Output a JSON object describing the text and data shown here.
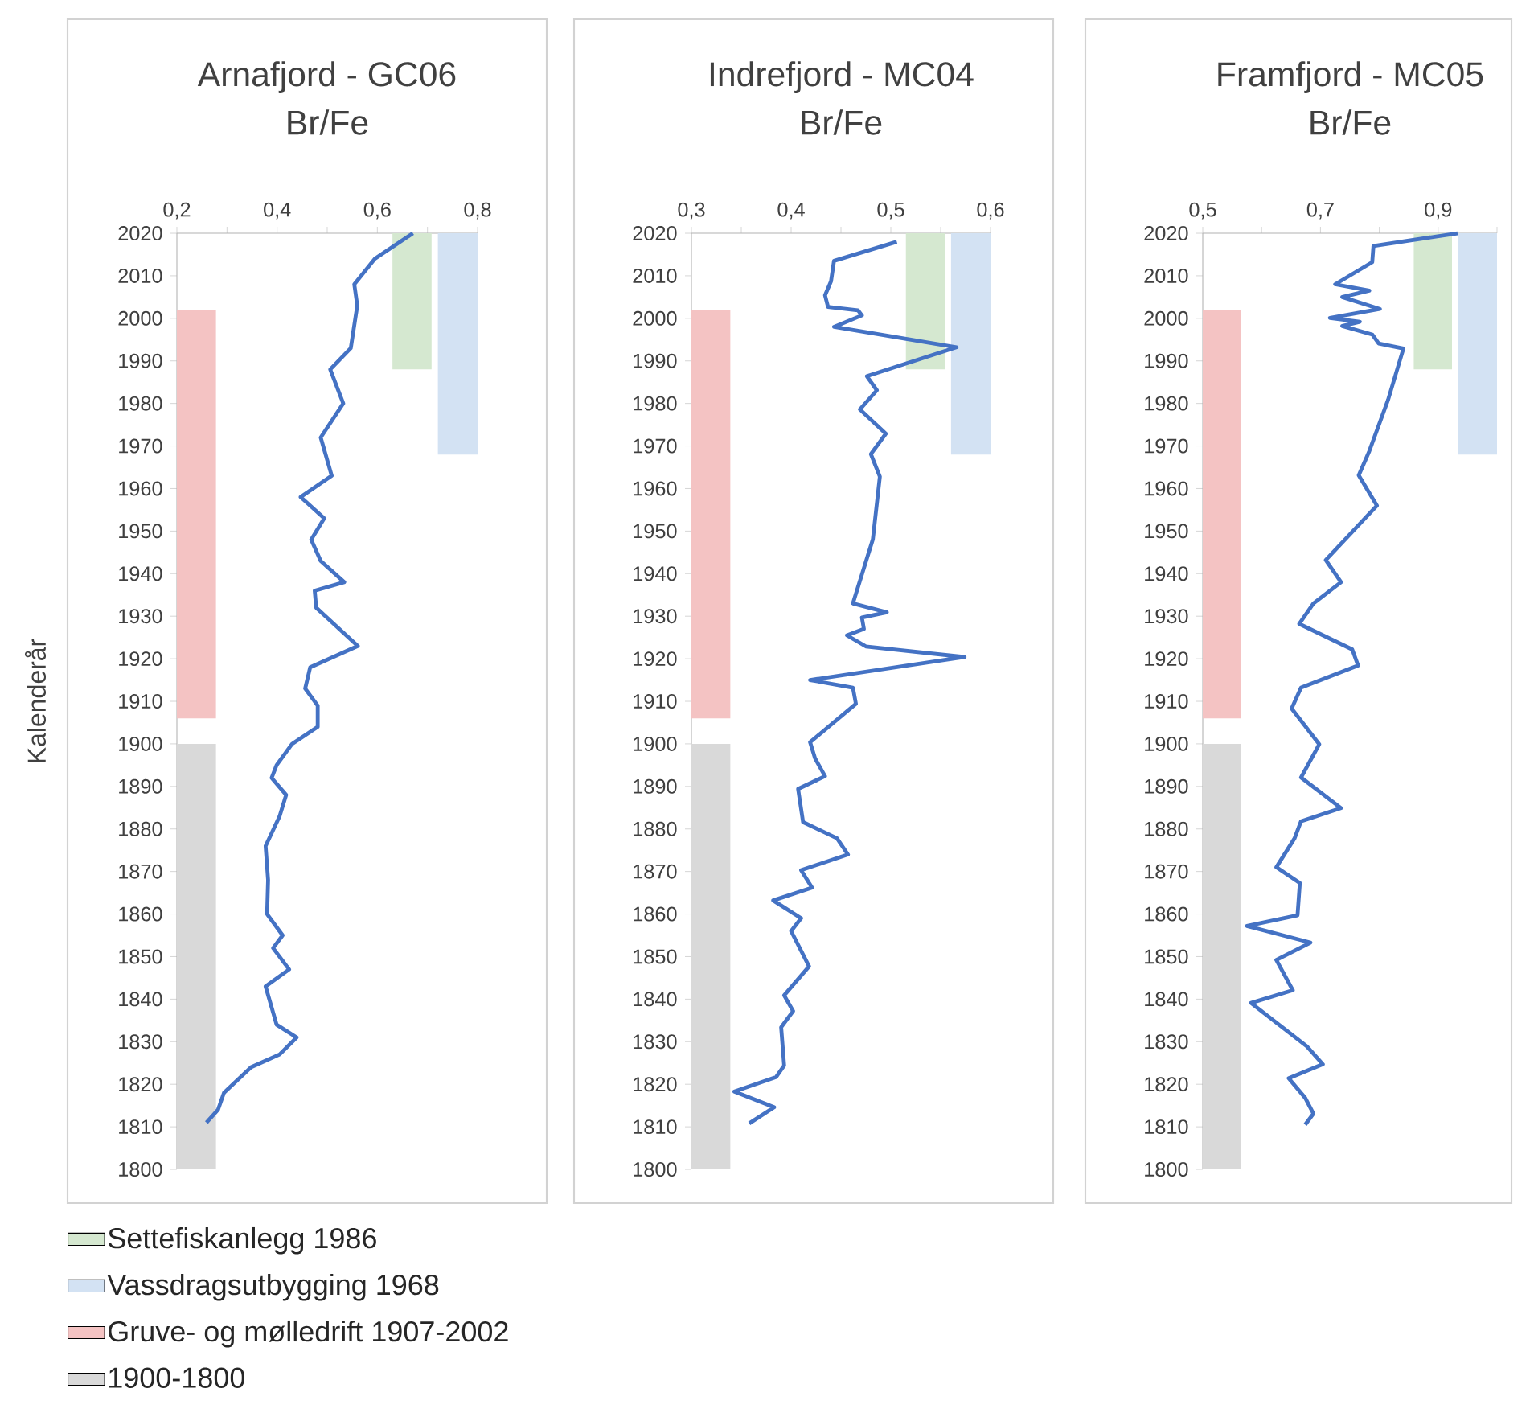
{
  "chart_data": [
    {
      "type": "line",
      "title": "Arnafjord - GC06",
      "xlabel": "Br/Fe",
      "ylabel": "Kalenderår",
      "xlim": [
        0.2,
        0.8
      ],
      "xticks": [
        {
          "value": 0.2,
          "label": "0,2"
        },
        {
          "value": 0.3,
          "label": null
        },
        {
          "value": 0.4,
          "label": "0,4"
        },
        {
          "value": 0.5,
          "label": null
        },
        {
          "value": 0.6,
          "label": "0,6"
        },
        {
          "value": 0.7,
          "label": null
        },
        {
          "value": 0.8,
          "label": "0,8"
        }
      ],
      "ylim": [
        1800,
        2020
      ],
      "yticks": [
        1800,
        1810,
        1820,
        1830,
        1840,
        1850,
        1860,
        1870,
        1880,
        1890,
        1900,
        1910,
        1920,
        1930,
        1940,
        1950,
        1960,
        1970,
        1980,
        1990,
        2000,
        2010,
        2020
      ],
      "series": [
        {
          "color": "#4472c4",
          "x": [
            0.671,
            0.595,
            0.554,
            0.56,
            0.547,
            0.506,
            0.532,
            0.487,
            0.509,
            0.447,
            0.494,
            0.468,
            0.487,
            0.534,
            0.475,
            0.478,
            0.561,
            0.466,
            0.456,
            0.481,
            0.481,
            0.43,
            0.399,
            0.389,
            0.418,
            0.405,
            0.377,
            0.382,
            0.38,
            0.411,
            0.392,
            0.424,
            0.377,
            0.399,
            0.439,
            0.405,
            0.348,
            0.294,
            0.282,
            0.259
          ],
          "values": [
            2020,
            2014,
            2008,
            2003,
            1993,
            1988,
            1980,
            1972,
            1963,
            1958,
            1953,
            1948,
            1943,
            1938,
            1936,
            1932,
            1923,
            1918,
            1913,
            1909,
            1904,
            1900,
            1895,
            1892,
            1888,
            1883,
            1876,
            1868,
            1860,
            1855,
            1852,
            1847,
            1843,
            1834,
            1831,
            1827,
            1824,
            1818,
            1814,
            1811
          ]
        }
      ],
      "bands": [
        {
          "axis": "y",
          "from": 1988,
          "to": 2020,
          "label": "Settefiskanlegg 1986",
          "color": "#d5e8d0"
        },
        {
          "axis": "y",
          "from": 1968,
          "to": 2020,
          "label": "Vassdragsutbygging 1968",
          "color": "#d3e2f3"
        },
        {
          "axis": "y",
          "from": 1906,
          "to": 2002,
          "label": "Gruve- og mølledrift 1907-2002",
          "color": "#f4c3c3"
        },
        {
          "axis": "y",
          "from": 1800,
          "to": 1900,
          "label": "1900-1800",
          "color": "#d9d9d9"
        }
      ],
      "legend": "bottom"
    },
    {
      "type": "line",
      "title": "Indrefjord - MC04",
      "xlabel": "Br/Fe",
      "xlim": [
        0.3,
        0.6
      ],
      "xticks": [
        {
          "value": 0.3,
          "label": "0,3"
        },
        {
          "value": 0.35,
          "label": null
        },
        {
          "value": 0.4,
          "label": "0,4"
        },
        {
          "value": 0.45,
          "label": null
        },
        {
          "value": 0.5,
          "label": "0,5"
        },
        {
          "value": 0.55,
          "label": null
        },
        {
          "value": 0.6,
          "label": "0,6"
        }
      ],
      "ylim": [
        1800,
        2020
      ],
      "yticks": [
        1800,
        1810,
        1820,
        1830,
        1840,
        1850,
        1860,
        1870,
        1880,
        1890,
        1900,
        1910,
        1920,
        1930,
        1940,
        1950,
        1960,
        1970,
        1980,
        1990,
        2000,
        2010,
        2020
      ],
      "series": [
        {
          "color": "#4472c4",
          "x": [
            0.506,
            0.443,
            0.44,
            0.434,
            0.437,
            0.467,
            0.471,
            0.443,
            0.566,
            0.476,
            0.486,
            0.469,
            0.495,
            0.48,
            0.489,
            0.482,
            0.462,
            0.496,
            0.471,
            0.473,
            0.456,
            0.475,
            0.574,
            0.419,
            0.462,
            0.465,
            0.419,
            0.424,
            0.434,
            0.407,
            0.412,
            0.446,
            0.457,
            0.41,
            0.421,
            0.382,
            0.41,
            0.4,
            0.418,
            0.393,
            0.402,
            0.39,
            0.393,
            0.385,
            0.343,
            0.383,
            0.358
          ],
          "values": [
            2018,
            2013.5,
            2008.7,
            2005.4,
            2002.7,
            2001.9,
            2000.7,
            1998,
            1993.2,
            1986.4,
            1983.1,
            1978.6,
            1972.9,
            1968.1,
            1962.8,
            1948.1,
            1933,
            1930.9,
            1929.7,
            1927,
            1925.5,
            1922.9,
            1920.4,
            1915,
            1913.2,
            1909.4,
            1900.4,
            1896.6,
            1892.4,
            1889.4,
            1881.6,
            1877.8,
            1874,
            1870.3,
            1866.2,
            1863.2,
            1859,
            1856,
            1847.7,
            1840.9,
            1837.2,
            1833.4,
            1824.4,
            1821.7,
            1818.3,
            1814.6,
            1810.8
          ]
        }
      ],
      "bands": [
        {
          "axis": "y",
          "from": 1988,
          "to": 2020,
          "color": "#d5e8d0"
        },
        {
          "axis": "y",
          "from": 1968,
          "to": 2020,
          "color": "#d3e2f3"
        },
        {
          "axis": "y",
          "from": 1906,
          "to": 2002,
          "color": "#f4c3c3"
        },
        {
          "axis": "y",
          "from": 1800,
          "to": 1900,
          "color": "#d9d9d9"
        }
      ]
    },
    {
      "type": "line",
      "title": "Framfjord - MC05",
      "xlabel": "Br/Fe",
      "xlim": [
        0.5,
        1.0
      ],
      "xticks": [
        {
          "value": 0.5,
          "label": "0,5"
        },
        {
          "value": 0.6,
          "label": null
        },
        {
          "value": 0.7,
          "label": "0,7"
        },
        {
          "value": 0.8,
          "label": null
        },
        {
          "value": 0.9,
          "label": "0,9"
        },
        {
          "value": 1.0,
          "label": null
        }
      ],
      "ylim": [
        1800,
        2020
      ],
      "yticks": [
        1800,
        1810,
        1820,
        1830,
        1840,
        1850,
        1860,
        1870,
        1880,
        1890,
        1900,
        1910,
        1920,
        1930,
        1940,
        1950,
        1960,
        1970,
        1980,
        1990,
        2000,
        2010,
        2020
      ],
      "series": [
        {
          "color": "#4472c4",
          "x": [
            0.933,
            0.79,
            0.788,
            0.725,
            0.783,
            0.737,
            0.801,
            0.716,
            0.767,
            0.737,
            0.788,
            0.799,
            0.841,
            0.815,
            0.783,
            0.765,
            0.796,
            0.709,
            0.735,
            0.688,
            0.664,
            0.754,
            0.764,
            0.667,
            0.651,
            0.698,
            0.667,
            0.735,
            0.667,
            0.656,
            0.625,
            0.665,
            0.661,
            0.575,
            0.683,
            0.625,
            0.653,
            0.582,
            0.677,
            0.704,
            0.646,
            0.674,
            0.688,
            0.674
          ],
          "values": [
            2020,
            2017,
            2013.2,
            2008,
            2006.5,
            2005,
            2002.2,
            2000.1,
            1999.2,
            1998.2,
            1996.2,
            1994.1,
            1992.9,
            1980.9,
            1968.8,
            1963.1,
            1956,
            1943.2,
            1938,
            1933,
            1928.2,
            1922.2,
            1918.4,
            1913.2,
            1908.3,
            1899.9,
            1892.1,
            1884.9,
            1881.8,
            1877.8,
            1871,
            1867.3,
            1859.7,
            1857.2,
            1853.3,
            1849.2,
            1842.1,
            1839.1,
            1828.9,
            1824.7,
            1821.4,
            1816.8,
            1813.1,
            1810.5
          ]
        }
      ],
      "bands": [
        {
          "axis": "y",
          "from": 1988,
          "to": 2020,
          "color": "#d5e8d0"
        },
        {
          "axis": "y",
          "from": 1968,
          "to": 2020,
          "color": "#d3e2f3"
        },
        {
          "axis": "y",
          "from": 1906,
          "to": 2002,
          "color": "#f4c3c3"
        },
        {
          "axis": "y",
          "from": 1800,
          "to": 1900,
          "color": "#d9d9d9"
        }
      ]
    }
  ]
}
